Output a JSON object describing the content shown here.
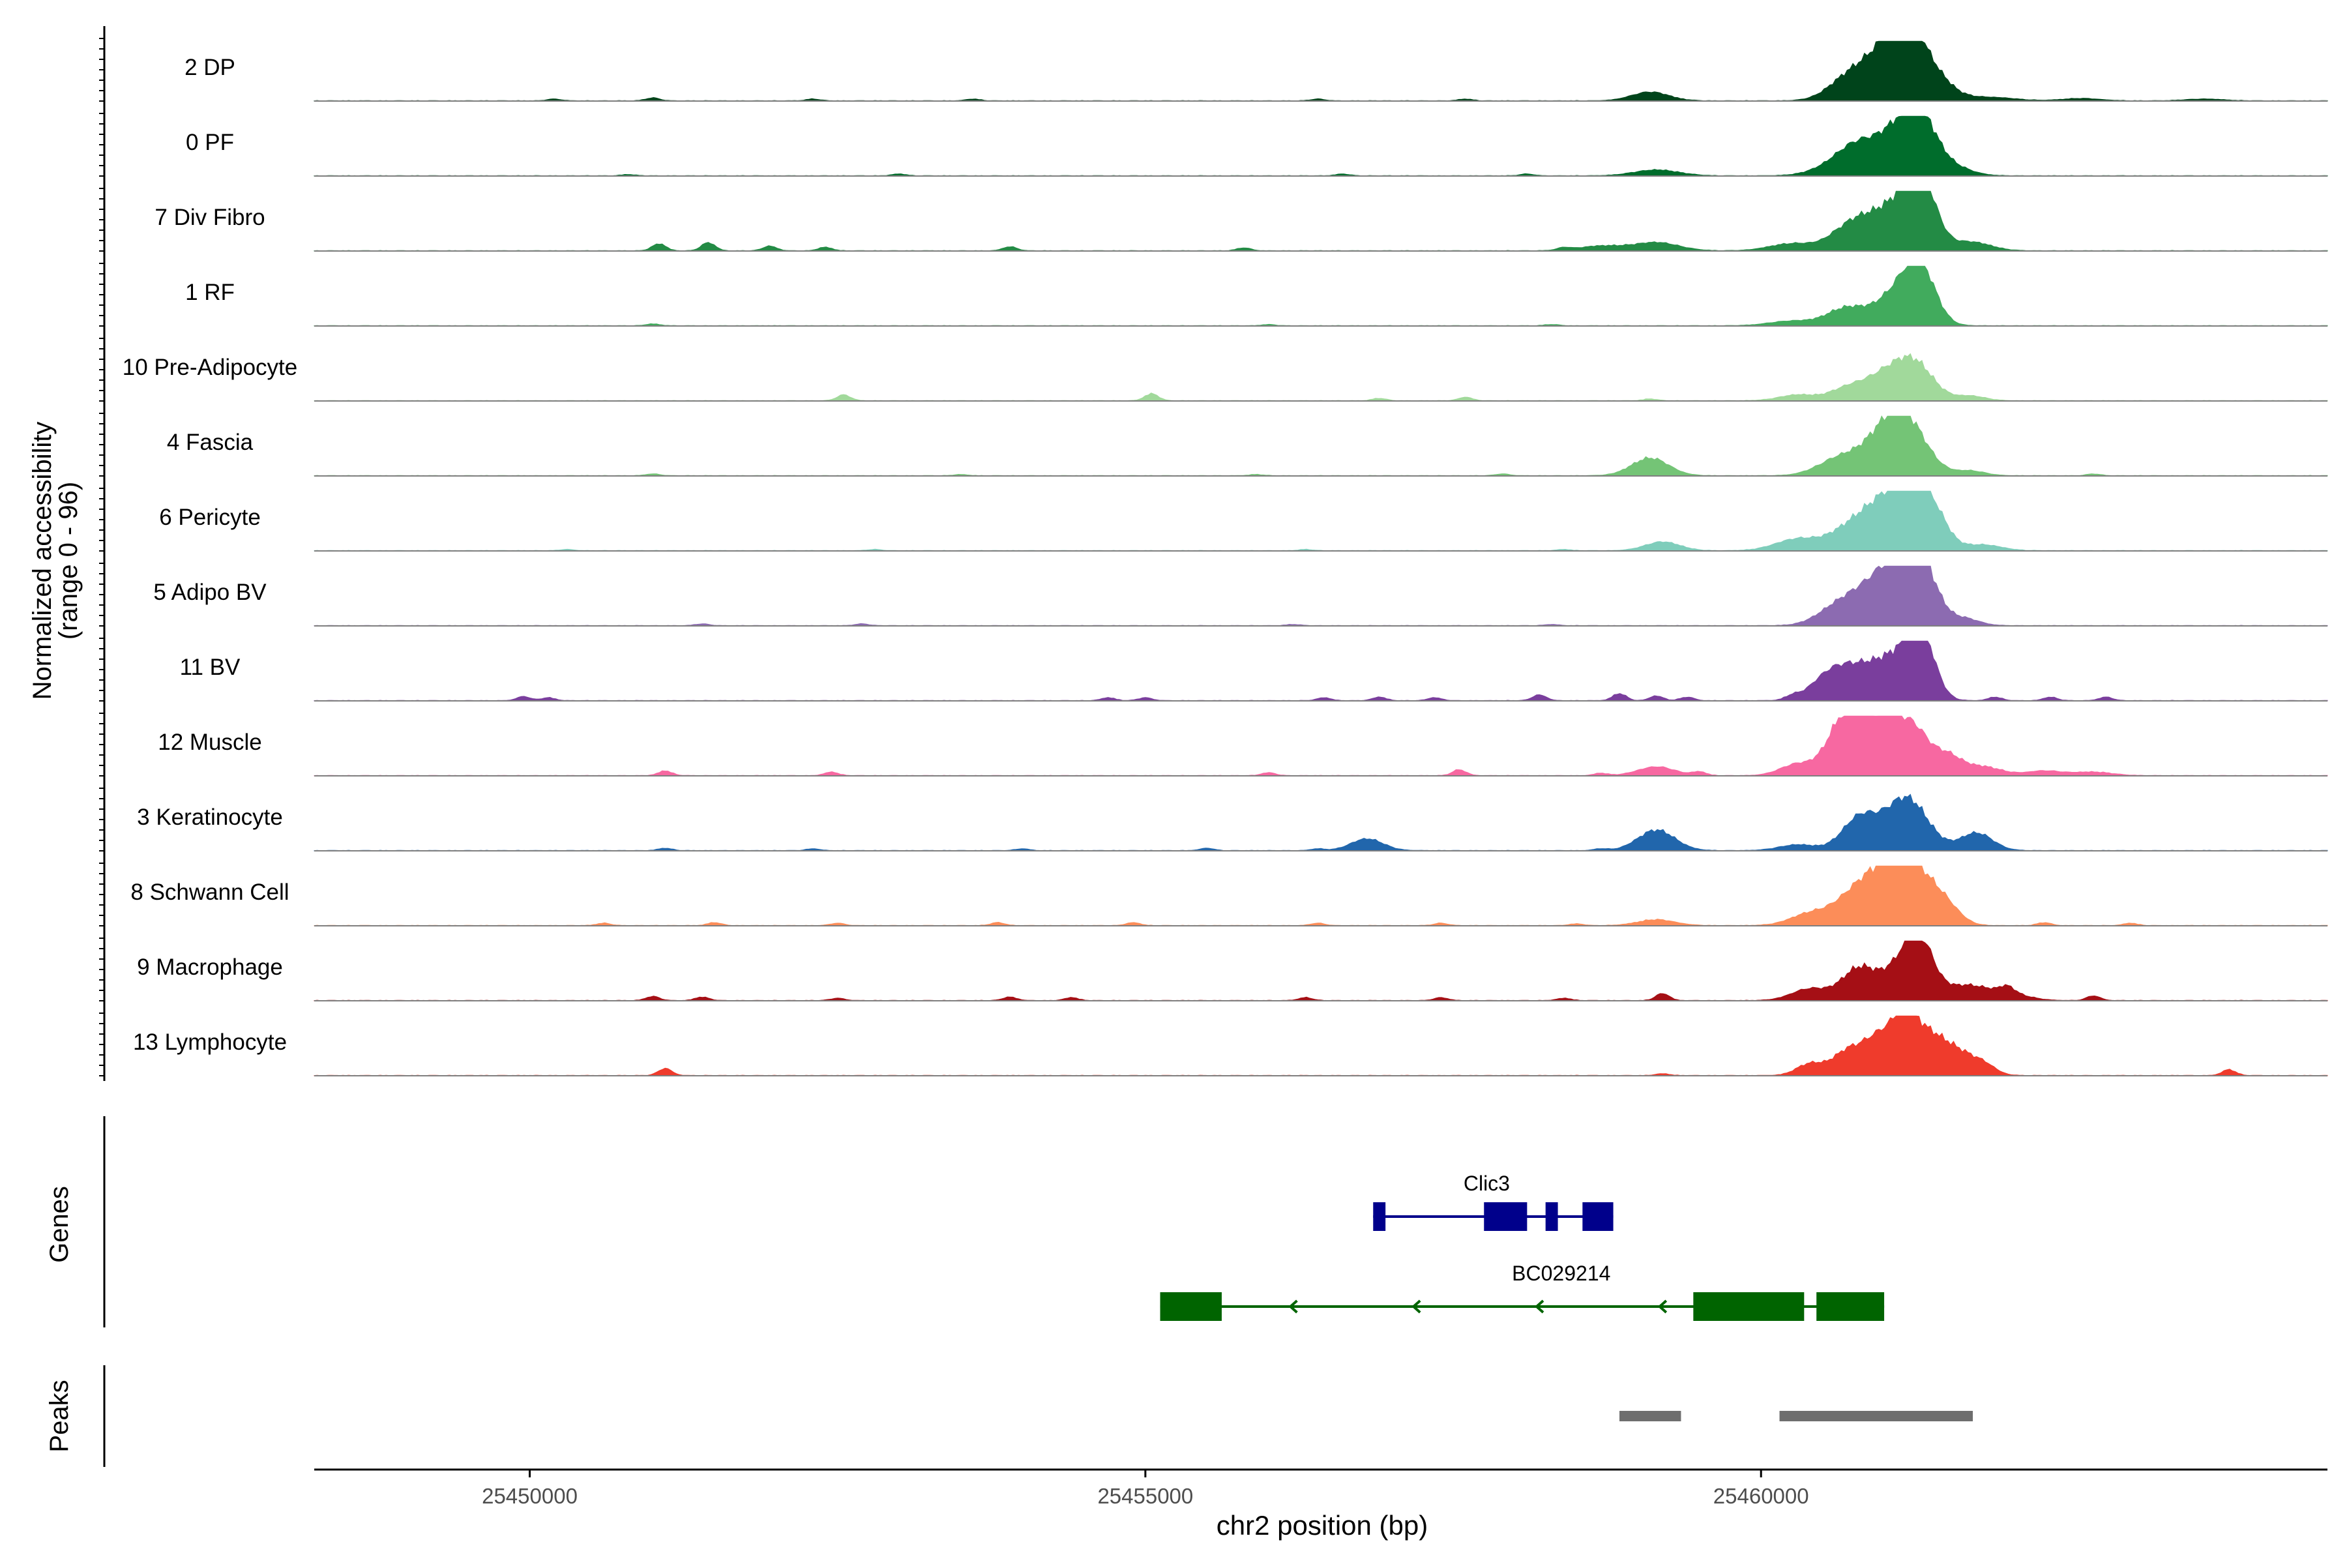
{
  "chart_data": {
    "type": "area",
    "ylabel_line1": "Normalized accessibility",
    "ylabel_line2": "(range 0 - 96)",
    "xlabel": "chr2 position (bp)",
    "xlim": [
      25448250,
      25464600
    ],
    "ylim": [
      0,
      96
    ],
    "x_ticks": [
      {
        "value": 25450000,
        "label": "25450000"
      },
      {
        "value": 25455000,
        "label": "25455000"
      },
      {
        "value": 25460000,
        "label": "25460000"
      }
    ],
    "tracks": [
      {
        "name": "2 DP",
        "color": "#00441b",
        "background": [
          [
            25450200,
            0.03
          ],
          [
            25451000,
            0.05
          ],
          [
            25452300,
            0.03
          ],
          [
            25453600,
            0.03
          ],
          [
            25456400,
            0.03
          ],
          [
            25457600,
            0.03
          ]
        ],
        "peaks": [
          [
            25459100,
            0.15,
            150
          ],
          [
            25460700,
            0.35,
            160
          ],
          [
            25461000,
            0.75,
            170
          ],
          [
            25461170,
            0.8,
            120
          ],
          [
            25461350,
            0.55,
            160
          ],
          [
            25461850,
            0.06,
            200
          ],
          [
            25462600,
            0.04,
            150
          ],
          [
            25463600,
            0.03,
            150
          ]
        ]
      },
      {
        "name": "0 PF",
        "color": "#006d2c",
        "background": [
          [
            25450800,
            0.02
          ],
          [
            25453000,
            0.03
          ],
          [
            25456600,
            0.03
          ],
          [
            25458100,
            0.03
          ]
        ],
        "peaks": [
          [
            25459150,
            0.1,
            180
          ],
          [
            25460600,
            0.15,
            180
          ],
          [
            25460800,
            0.45,
            160
          ],
          [
            25461100,
            0.65,
            150
          ],
          [
            25461300,
            0.85,
            130
          ],
          [
            25461550,
            0.15,
            150
          ]
        ]
      },
      {
        "name": "7 Div Fibro",
        "color": "#238b45",
        "background": [
          [
            25451050,
            0.12
          ],
          [
            25451450,
            0.14
          ],
          [
            25451950,
            0.08
          ],
          [
            25452400,
            0.06
          ],
          [
            25453900,
            0.07
          ],
          [
            25455800,
            0.05
          ],
          [
            25458400,
            0.04
          ]
        ],
        "peaks": [
          [
            25458700,
            0.08,
            180
          ],
          [
            25459150,
            0.14,
            180
          ],
          [
            25460250,
            0.12,
            180
          ],
          [
            25460750,
            0.45,
            170
          ],
          [
            25461100,
            0.7,
            180
          ],
          [
            25461300,
            1.0,
            120
          ],
          [
            25461700,
            0.15,
            160
          ]
        ]
      },
      {
        "name": "1 RF",
        "color": "#41ab5d",
        "background": [
          [
            25451000,
            0.03
          ],
          [
            25456000,
            0.02
          ],
          [
            25458300,
            0.02
          ]
        ],
        "peaks": [
          [
            25460250,
            0.08,
            180
          ],
          [
            25460700,
            0.3,
            160
          ],
          [
            25461130,
            0.6,
            170
          ],
          [
            25461300,
            0.75,
            120
          ]
        ]
      },
      {
        "name": "10 Pre-Adipocyte",
        "color": "#a1d99b",
        "background": [
          [
            25452550,
            0.1
          ],
          [
            25455050,
            0.12
          ],
          [
            25456900,
            0.04
          ],
          [
            25457600,
            0.06
          ],
          [
            25459100,
            0.03
          ]
        ],
        "peaks": [
          [
            25460300,
            0.1,
            150
          ],
          [
            25460700,
            0.2,
            140
          ],
          [
            25461000,
            0.4,
            160
          ],
          [
            25461250,
            0.6,
            150
          ],
          [
            25461700,
            0.08,
            120
          ]
        ]
      },
      {
        "name": "4 Fascia",
        "color": "#74c476",
        "background": [
          [
            25451000,
            0.03
          ],
          [
            25453500,
            0.02
          ],
          [
            25455900,
            0.02
          ],
          [
            25457900,
            0.03
          ],
          [
            25462700,
            0.03
          ]
        ],
        "peaks": [
          [
            25459100,
            0.3,
            150
          ],
          [
            25460650,
            0.3,
            180
          ],
          [
            25461000,
            0.5,
            170
          ],
          [
            25461180,
            0.8,
            170
          ],
          [
            25461700,
            0.08,
            120
          ]
        ]
      },
      {
        "name": "6 Pericyte",
        "color": "#7fcdbb",
        "background": [
          [
            25450300,
            0.02
          ],
          [
            25452800,
            0.02
          ],
          [
            25456300,
            0.02
          ],
          [
            25458400,
            0.02
          ]
        ],
        "peaks": [
          [
            25459200,
            0.15,
            140
          ],
          [
            25460300,
            0.2,
            180
          ],
          [
            25460700,
            0.3,
            160
          ],
          [
            25460950,
            0.6,
            160
          ],
          [
            25461200,
            0.95,
            150
          ],
          [
            25461400,
            0.5,
            120
          ],
          [
            25461800,
            0.1,
            150
          ]
        ]
      },
      {
        "name": "5 Adipo BV",
        "color": "#8c6bb1",
        "background": [
          [
            25451400,
            0.03
          ],
          [
            25452700,
            0.03
          ],
          [
            25456200,
            0.02
          ],
          [
            25458300,
            0.02
          ]
        ],
        "peaks": [
          [
            25460600,
            0.25,
            160
          ],
          [
            25460850,
            0.45,
            170
          ],
          [
            25461100,
            0.85,
            160
          ],
          [
            25461300,
            0.9,
            130
          ],
          [
            25461650,
            0.12,
            120
          ]
        ]
      },
      {
        "name": "11 BV",
        "color": "#7a3e9d",
        "background": [
          [
            25449950,
            0.07
          ],
          [
            25450150,
            0.05
          ],
          [
            25454700,
            0.05
          ],
          [
            25455000,
            0.05
          ],
          [
            25456450,
            0.05
          ],
          [
            25456900,
            0.06
          ],
          [
            25457350,
            0.05
          ],
          [
            25458200,
            0.1
          ],
          [
            25458850,
            0.12
          ],
          [
            25459150,
            0.08
          ],
          [
            25459400,
            0.06
          ],
          [
            25460250,
            0.06
          ],
          [
            25461900,
            0.06
          ],
          [
            25462350,
            0.06
          ],
          [
            25462800,
            0.06
          ]
        ],
        "peaks": [
          [
            25460550,
            0.4,
            150
          ],
          [
            25460800,
            0.45,
            160
          ],
          [
            25461100,
            0.65,
            160
          ],
          [
            25461300,
            1.0,
            110
          ]
        ]
      },
      {
        "name": "12 Muscle",
        "color": "#f768a1",
        "background": [
          [
            25451100,
            0.08
          ],
          [
            25452450,
            0.06
          ],
          [
            25456000,
            0.05
          ],
          [
            25457550,
            0.1
          ],
          [
            25458700,
            0.04
          ],
          [
            25459500,
            0.06
          ]
        ],
        "peaks": [
          [
            25459150,
            0.15,
            150
          ],
          [
            25460300,
            0.2,
            140
          ],
          [
            25460620,
            0.55,
            120
          ],
          [
            25460800,
            1.0,
            130
          ],
          [
            25461050,
            0.8,
            110
          ],
          [
            25461250,
            0.7,
            110
          ],
          [
            25461500,
            0.35,
            120
          ],
          [
            25461800,
            0.15,
            150
          ],
          [
            25462300,
            0.08,
            150
          ],
          [
            25462700,
            0.06,
            150
          ]
        ]
      },
      {
        "name": "3 Keratinocyte",
        "color": "#2166ac",
        "background": [
          [
            25451100,
            0.04
          ],
          [
            25452300,
            0.03
          ],
          [
            25454000,
            0.03
          ],
          [
            25455500,
            0.04
          ],
          [
            25456400,
            0.03
          ],
          [
            25458700,
            0.03
          ]
        ],
        "peaks": [
          [
            25456800,
            0.2,
            130
          ],
          [
            25459150,
            0.35,
            150
          ],
          [
            25460300,
            0.1,
            150
          ],
          [
            25460800,
            0.55,
            140
          ],
          [
            25461180,
            0.9,
            170
          ],
          [
            25461750,
            0.3,
            130
          ]
        ]
      },
      {
        "name": "8 Schwann Cell",
        "color": "#fc8d59",
        "background": [
          [
            25450600,
            0.04
          ],
          [
            25451500,
            0.05
          ],
          [
            25452500,
            0.04
          ],
          [
            25453800,
            0.05
          ],
          [
            25454900,
            0.05
          ],
          [
            25456400,
            0.04
          ],
          [
            25457400,
            0.04
          ],
          [
            25458500,
            0.03
          ],
          [
            25462300,
            0.05
          ],
          [
            25463000,
            0.04
          ]
        ],
        "peaks": [
          [
            25459150,
            0.1,
            150
          ],
          [
            25460400,
            0.2,
            160
          ],
          [
            25460750,
            0.45,
            160
          ],
          [
            25461000,
            0.75,
            160
          ],
          [
            25461250,
            0.85,
            150
          ],
          [
            25461500,
            0.3,
            120
          ]
        ]
      },
      {
        "name": "9 Macrophage",
        "color": "#a50f15",
        "background": [
          [
            25451000,
            0.07
          ],
          [
            25451400,
            0.06
          ],
          [
            25452500,
            0.04
          ],
          [
            25453900,
            0.06
          ],
          [
            25454400,
            0.05
          ],
          [
            25456300,
            0.05
          ],
          [
            25457400,
            0.05
          ],
          [
            25458400,
            0.04
          ],
          [
            25459200,
            0.12
          ],
          [
            25462000,
            0.1
          ],
          [
            25462700,
            0.08
          ]
        ],
        "peaks": [
          [
            25460400,
            0.2,
            150
          ],
          [
            25460800,
            0.55,
            140
          ],
          [
            25461150,
            0.6,
            140
          ],
          [
            25461300,
            0.75,
            110
          ],
          [
            25461650,
            0.25,
            180
          ],
          [
            25462000,
            0.12,
            160
          ]
        ]
      },
      {
        "name": "13 Lymphocyte",
        "color": "#ef3b2c",
        "background": [
          [
            25451100,
            0.12
          ],
          [
            25459200,
            0.03
          ],
          [
            25463800,
            0.1
          ]
        ],
        "peaks": [
          [
            25460400,
            0.2,
            110
          ],
          [
            25460700,
            0.4,
            120
          ],
          [
            25460950,
            0.6,
            120
          ],
          [
            25461180,
            1.0,
            110
          ],
          [
            25461400,
            0.55,
            110
          ],
          [
            25461600,
            0.35,
            110
          ],
          [
            25461800,
            0.2,
            100
          ]
        ]
      }
    ],
    "genes_label": "Genes",
    "genes": [
      {
        "name": "Clic3",
        "color": "#00008b",
        "start": 25456850,
        "end": 25458800,
        "strand": "-",
        "exons": [
          [
            25456850,
            25456950
          ],
          [
            25457750,
            25458100
          ],
          [
            25458250,
            25458350
          ],
          [
            25458550,
            25458800
          ]
        ]
      },
      {
        "name": "BC029214",
        "color": "#006400",
        "start": 25455120,
        "end": 25461000,
        "strand": "-",
        "exons": [
          [
            25455120,
            25455620
          ],
          [
            25459450,
            25460350
          ],
          [
            25460450,
            25461000
          ]
        ]
      }
    ],
    "peaks_label": "Peaks",
    "peak_regions": [
      [
        25458850,
        25459350
      ],
      [
        25460150,
        25461720
      ]
    ]
  }
}
